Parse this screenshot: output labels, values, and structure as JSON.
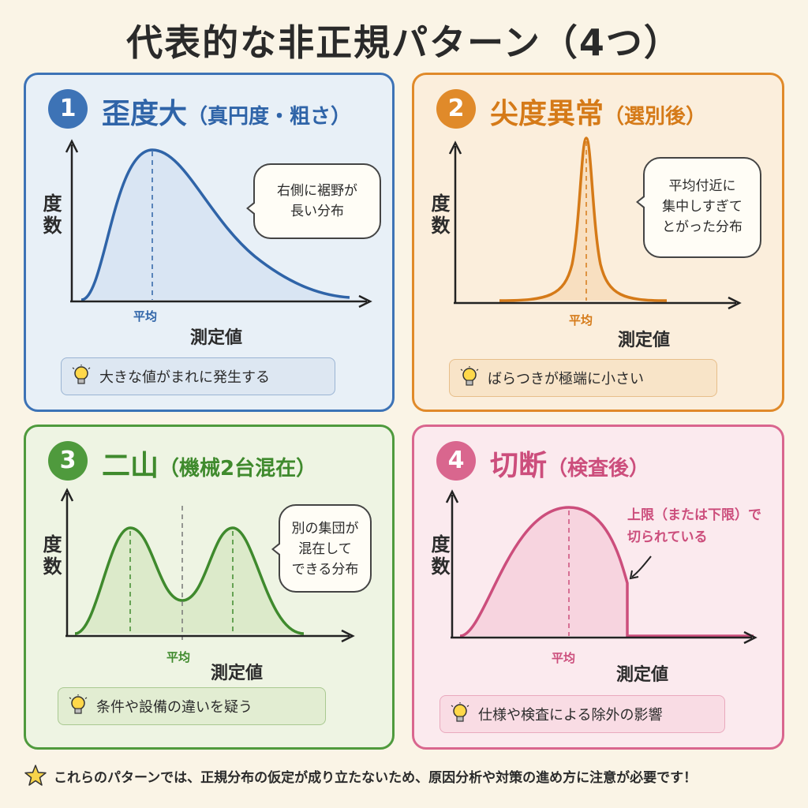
{
  "title": "代表的な非正規パターン（4つ）",
  "common": {
    "y_axis_label": "度数",
    "x_axis_label": "測定値",
    "mean_label": "平均"
  },
  "panels": [
    {
      "number": "1",
      "title": "歪度大",
      "subtitle": "（真円度・粗さ）",
      "callout": [
        "右側に裾野が",
        "長い分布"
      ],
      "tip": "大きな値がまれに発生する",
      "color": "#3d73b6"
    },
    {
      "number": "2",
      "title": "尖度異常",
      "subtitle": "（選別後）",
      "callout": [
        "平均付近に",
        "集中しすぎて",
        "とがった分布"
      ],
      "tip": "ばらつきが極端に小さい",
      "color": "#e08a2a"
    },
    {
      "number": "3",
      "title": "二山",
      "subtitle": "（機械2台混在）",
      "callout": [
        "別の集団が",
        "混在して",
        "できる分布"
      ],
      "tip": "条件や設備の違いを疑う",
      "color": "#4f9a3d"
    },
    {
      "number": "4",
      "title": "切断",
      "subtitle": "（検査後）",
      "callout": [
        "上限（または下限）で",
        "切られている"
      ],
      "tip": "仕様や検査による除外の影響",
      "color": "#d9668e"
    }
  ],
  "footer": "これらのパターンでは、正規分布の仮定が成り立たないため、原因分析や対策の進め方に注意が必要です！"
}
